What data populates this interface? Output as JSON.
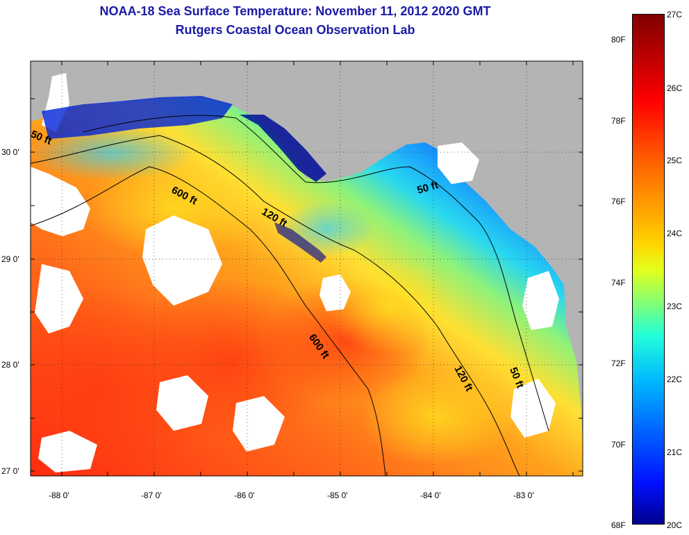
{
  "title": {
    "line1": "NOAA-18 Sea Surface Temperature:  November 11, 2012 2020 GMT",
    "line2": "Rutgers Coastal Ocean Observation Lab"
  },
  "axes": {
    "lat_ticks": [
      "30 0'",
      "29 0'",
      "28 0'",
      "27 0'"
    ],
    "lon_ticks": [
      "-88 0'",
      "-87 0'",
      "-86 0'",
      "-85 0'",
      "-84 0'",
      "-83 0'"
    ]
  },
  "contours": {
    "c50_west": "50 ft",
    "c600_north": "600 ft",
    "c120_north": "120 ft",
    "c50_east": "50 ft",
    "c600_south": "600 ft",
    "c120_south": "120 ft",
    "c50_south": "50 ft"
  },
  "colorbar": {
    "fahrenheit": [
      "80F",
      "78F",
      "76F",
      "74F",
      "72F",
      "70F",
      "68F"
    ],
    "celsius": [
      "27C",
      "26C",
      "25C",
      "24C",
      "23C",
      "22C",
      "21C",
      "20C"
    ]
  },
  "colors": {
    "land": "#b4b4b4",
    "title": "#1a1aa6",
    "warm": "#ff6a1a",
    "cool": "#0018e6"
  }
}
